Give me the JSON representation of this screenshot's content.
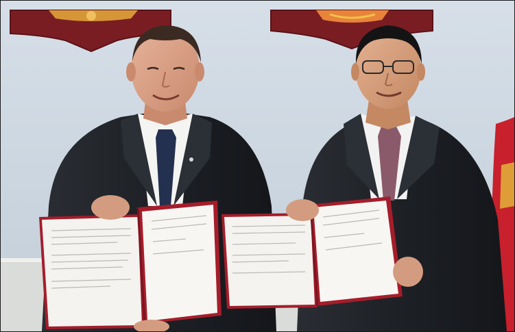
{
  "photo": {
    "subject": "signing-ceremony",
    "people": [
      {
        "position": "left",
        "attire": "dark-suit-navy-tie"
      },
      {
        "position": "right",
        "attire": "dark-suit-mauve-tie"
      }
    ],
    "documents": [
      {
        "holder": "left",
        "cover": "#a51d2b"
      },
      {
        "holder": "right",
        "cover": "#a51d2b"
      }
    ],
    "colors": {
      "wall": "#cdd8e4",
      "emblem_red": "#7a1d23",
      "emblem_gold": "#e0a43a",
      "suit": "#1f2227",
      "flag": "#c8202c"
    }
  }
}
